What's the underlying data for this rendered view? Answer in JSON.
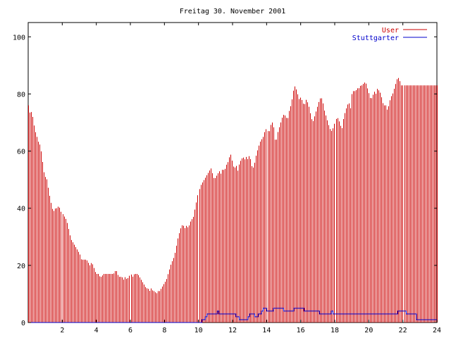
{
  "chart_data": {
    "type": "bar",
    "title": "Freitag 30. November 2001",
    "xlabel": "",
    "ylabel": "",
    "xlim": [
      0,
      24
    ],
    "ylim": [
      0,
      105
    ],
    "x_ticks": [
      2,
      4,
      6,
      8,
      10,
      12,
      14,
      16,
      18,
      20,
      22,
      24
    ],
    "y_ticks": [
      0,
      20,
      40,
      60,
      80,
      100
    ],
    "legend_position": "top-right",
    "grid": false,
    "colors": {
      "axis": "#000000",
      "user": "#cc0000",
      "stuttgarter": "#0000cc"
    },
    "series": [
      {
        "name": "User",
        "style": "impulses",
        "color": "#cc0000",
        "points": [
          [
            0.0,
            76
          ],
          [
            0.1,
            73
          ],
          [
            0.2,
            74
          ],
          [
            0.3,
            70
          ],
          [
            0.4,
            67
          ],
          [
            0.5,
            65
          ],
          [
            0.6,
            63
          ],
          [
            0.7,
            62
          ],
          [
            0.8,
            58
          ],
          [
            0.9,
            53
          ],
          [
            1.0,
            51
          ],
          [
            1.1,
            50
          ],
          [
            1.2,
            46
          ],
          [
            1.3,
            43
          ],
          [
            1.4,
            40
          ],
          [
            1.5,
            39
          ],
          [
            1.6,
            40
          ],
          [
            1.7,
            40
          ],
          [
            1.8,
            41
          ],
          [
            1.9,
            39
          ],
          [
            2.0,
            38
          ],
          [
            2.1,
            37
          ],
          [
            2.2,
            36
          ],
          [
            2.3,
            34
          ],
          [
            2.4,
            31
          ],
          [
            2.5,
            29
          ],
          [
            2.6,
            28
          ],
          [
            2.7,
            27
          ],
          [
            2.8,
            26
          ],
          [
            2.9,
            25
          ],
          [
            3.0,
            24
          ],
          [
            3.1,
            22
          ],
          [
            3.2,
            22
          ],
          [
            3.3,
            22
          ],
          [
            3.4,
            22
          ],
          [
            3.5,
            21
          ],
          [
            3.6,
            20
          ],
          [
            3.7,
            21
          ],
          [
            3.8,
            20
          ],
          [
            3.9,
            18
          ],
          [
            4.0,
            17
          ],
          [
            4.1,
            17
          ],
          [
            4.2,
            16
          ],
          [
            4.3,
            16
          ],
          [
            4.4,
            17
          ],
          [
            4.5,
            17
          ],
          [
            4.6,
            17
          ],
          [
            4.7,
            17
          ],
          [
            4.8,
            17
          ],
          [
            4.9,
            17
          ],
          [
            5.0,
            17
          ],
          [
            5.1,
            18
          ],
          [
            5.2,
            18
          ],
          [
            5.3,
            16
          ],
          [
            5.4,
            16
          ],
          [
            5.5,
            16
          ],
          [
            5.6,
            15
          ],
          [
            5.7,
            16
          ],
          [
            5.8,
            15
          ],
          [
            5.9,
            16
          ],
          [
            6.0,
            17
          ],
          [
            6.1,
            16
          ],
          [
            6.2,
            17
          ],
          [
            6.3,
            17
          ],
          [
            6.4,
            17
          ],
          [
            6.5,
            16
          ],
          [
            6.6,
            15
          ],
          [
            6.7,
            14
          ],
          [
            6.8,
            13
          ],
          [
            6.9,
            12
          ],
          [
            7.0,
            12
          ],
          [
            7.1,
            11
          ],
          [
            7.2,
            12
          ],
          [
            7.3,
            11
          ],
          [
            7.4,
            11
          ],
          [
            7.5,
            10
          ],
          [
            7.6,
            11
          ],
          [
            7.7,
            11
          ],
          [
            7.8,
            12
          ],
          [
            7.9,
            13
          ],
          [
            8.0,
            14
          ],
          [
            8.1,
            15
          ],
          [
            8.2,
            17
          ],
          [
            8.3,
            19
          ],
          [
            8.4,
            21
          ],
          [
            8.5,
            22
          ],
          [
            8.6,
            24
          ],
          [
            8.7,
            27
          ],
          [
            8.8,
            30
          ],
          [
            8.9,
            32
          ],
          [
            9.0,
            34
          ],
          [
            9.1,
            34
          ],
          [
            9.2,
            33
          ],
          [
            9.3,
            34
          ],
          [
            9.4,
            33
          ],
          [
            9.5,
            35
          ],
          [
            9.6,
            36
          ],
          [
            9.7,
            37
          ],
          [
            9.8,
            40
          ],
          [
            9.9,
            43
          ],
          [
            10.0,
            46
          ],
          [
            10.1,
            48
          ],
          [
            10.2,
            49
          ],
          [
            10.3,
            50
          ],
          [
            10.4,
            51
          ],
          [
            10.5,
            52
          ],
          [
            10.6,
            53
          ],
          [
            10.7,
            54
          ],
          [
            10.8,
            52
          ],
          [
            10.9,
            50
          ],
          [
            11.0,
            51
          ],
          [
            11.1,
            52
          ],
          [
            11.2,
            53
          ],
          [
            11.3,
            52
          ],
          [
            11.4,
            54
          ],
          [
            11.5,
            53
          ],
          [
            11.6,
            55
          ],
          [
            11.7,
            56
          ],
          [
            11.8,
            58
          ],
          [
            11.9,
            59
          ],
          [
            12.0,
            55
          ],
          [
            12.1,
            54
          ],
          [
            12.2,
            55
          ],
          [
            12.3,
            53
          ],
          [
            12.4,
            56
          ],
          [
            12.5,
            57
          ],
          [
            12.6,
            58
          ],
          [
            12.7,
            57
          ],
          [
            12.8,
            58
          ],
          [
            12.9,
            57
          ],
          [
            13.0,
            59
          ],
          [
            13.1,
            55
          ],
          [
            13.2,
            54
          ],
          [
            13.3,
            56
          ],
          [
            13.4,
            59
          ],
          [
            13.5,
            61
          ],
          [
            13.6,
            63
          ],
          [
            13.7,
            64
          ],
          [
            13.8,
            65
          ],
          [
            13.9,
            67
          ],
          [
            14.0,
            68
          ],
          [
            14.1,
            66
          ],
          [
            14.2,
            69
          ],
          [
            14.3,
            70
          ],
          [
            14.4,
            68
          ],
          [
            14.5,
            62
          ],
          [
            14.6,
            66
          ],
          [
            14.7,
            68
          ],
          [
            14.8,
            70
          ],
          [
            14.9,
            72
          ],
          [
            15.0,
            73
          ],
          [
            15.1,
            72
          ],
          [
            15.2,
            71
          ],
          [
            15.3,
            74
          ],
          [
            15.4,
            76
          ],
          [
            15.5,
            79
          ],
          [
            15.6,
            83
          ],
          [
            15.7,
            82
          ],
          [
            15.8,
            80
          ],
          [
            15.9,
            78
          ],
          [
            16.0,
            79
          ],
          [
            16.1,
            77
          ],
          [
            16.2,
            76
          ],
          [
            16.3,
            78
          ],
          [
            16.4,
            77
          ],
          [
            16.5,
            75
          ],
          [
            16.6,
            72
          ],
          [
            16.7,
            70
          ],
          [
            16.8,
            72
          ],
          [
            16.9,
            74
          ],
          [
            17.0,
            76
          ],
          [
            17.1,
            78
          ],
          [
            17.2,
            79
          ],
          [
            17.3,
            77
          ],
          [
            17.4,
            74
          ],
          [
            17.5,
            72
          ],
          [
            17.6,
            70
          ],
          [
            17.7,
            68
          ],
          [
            17.8,
            67
          ],
          [
            17.9,
            68
          ],
          [
            18.0,
            70
          ],
          [
            18.1,
            72
          ],
          [
            18.2,
            71
          ],
          [
            18.3,
            69
          ],
          [
            18.4,
            68
          ],
          [
            18.5,
            72
          ],
          [
            18.6,
            74
          ],
          [
            18.7,
            76
          ],
          [
            18.8,
            77
          ],
          [
            18.9,
            75
          ],
          [
            19.0,
            81
          ],
          [
            19.1,
            81
          ],
          [
            19.2,
            81
          ],
          [
            19.3,
            82
          ],
          [
            19.4,
            82
          ],
          [
            19.5,
            83
          ],
          [
            19.6,
            83
          ],
          [
            19.7,
            84
          ],
          [
            19.8,
            84
          ],
          [
            19.9,
            82
          ],
          [
            20.0,
            80
          ],
          [
            20.1,
            78
          ],
          [
            20.2,
            79
          ],
          [
            20.3,
            81
          ],
          [
            20.4,
            80
          ],
          [
            20.5,
            82
          ],
          [
            20.6,
            81
          ],
          [
            20.7,
            80
          ],
          [
            20.8,
            77
          ],
          [
            20.9,
            76
          ],
          [
            21.0,
            76
          ],
          [
            21.1,
            74
          ],
          [
            21.2,
            77
          ],
          [
            21.3,
            79
          ],
          [
            21.4,
            80
          ],
          [
            21.5,
            82
          ],
          [
            21.6,
            84
          ],
          [
            21.7,
            86
          ],
          [
            21.8,
            85
          ],
          [
            21.9,
            83
          ]
        ]
      },
      {
        "name": "Stuttgarter",
        "style": "steps",
        "color": "#0000cc",
        "points": [
          [
            0.0,
            0
          ],
          [
            10.0,
            0
          ],
          [
            10.2,
            1
          ],
          [
            10.4,
            2
          ],
          [
            10.5,
            3
          ],
          [
            11.0,
            3
          ],
          [
            11.1,
            4
          ],
          [
            11.2,
            3
          ],
          [
            11.5,
            3
          ],
          [
            12.0,
            3
          ],
          [
            12.2,
            2
          ],
          [
            12.4,
            1
          ],
          [
            12.8,
            1
          ],
          [
            12.9,
            2
          ],
          [
            13.0,
            3
          ],
          [
            13.3,
            2
          ],
          [
            13.5,
            3
          ],
          [
            13.7,
            4
          ],
          [
            13.8,
            5
          ],
          [
            14.0,
            4
          ],
          [
            14.2,
            4
          ],
          [
            14.4,
            5
          ],
          [
            14.8,
            5
          ],
          [
            15.0,
            4
          ],
          [
            15.4,
            4
          ],
          [
            15.6,
            5
          ],
          [
            16.0,
            5
          ],
          [
            16.2,
            4
          ],
          [
            16.8,
            4
          ],
          [
            17.1,
            3
          ],
          [
            17.7,
            3
          ],
          [
            17.8,
            4
          ],
          [
            17.9,
            3
          ],
          [
            21.6,
            3
          ],
          [
            21.7,
            4
          ],
          [
            22.0,
            4
          ],
          [
            22.2,
            3
          ],
          [
            22.6,
            3
          ],
          [
            22.8,
            1
          ],
          [
            24.0,
            1
          ]
        ]
      }
    ]
  }
}
